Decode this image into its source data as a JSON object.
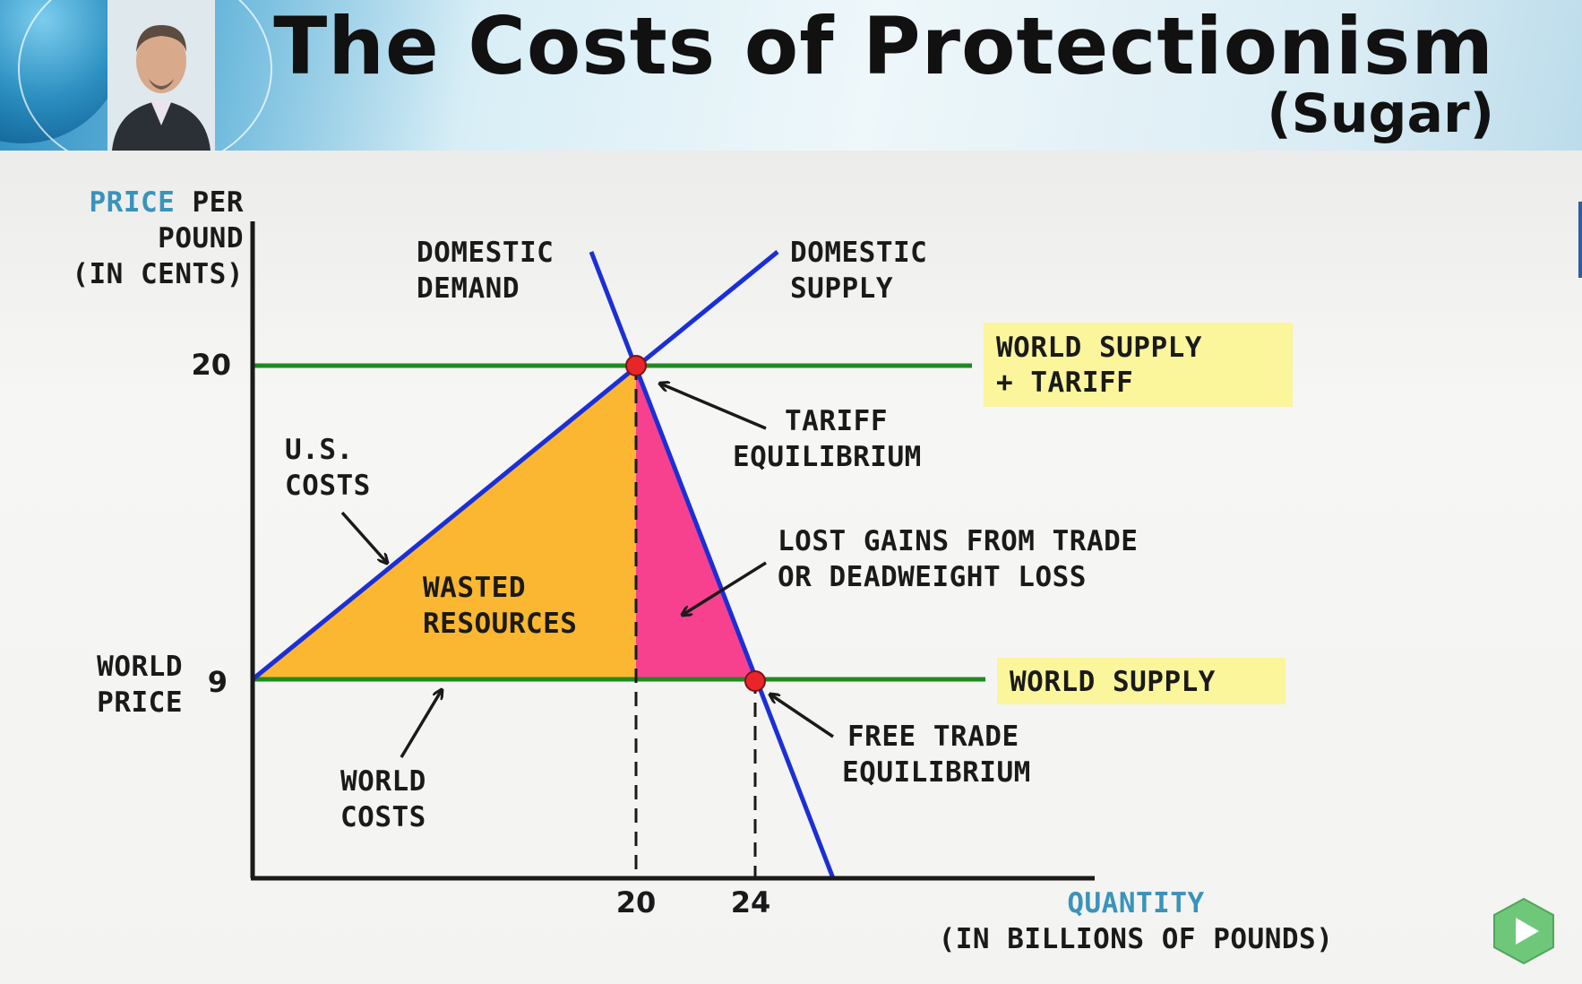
{
  "header": {
    "title": "The Costs of Protectionism",
    "subtitle": "(Sugar)"
  },
  "axes": {
    "y_label_line1_colored": "PRICE",
    "y_label_line1_rest": "PER",
    "y_label_line2": "POUND",
    "y_label_line3": "(IN CENTS)",
    "x_label_line1": "QUANTITY",
    "x_label_line2": "(IN BILLIONS OF POUNDS)",
    "y_ticks": [
      "20",
      "9"
    ],
    "x_ticks": [
      "20",
      "24"
    ],
    "world_price_line1": "WORLD",
    "world_price_line2": "PRICE"
  },
  "curves": {
    "demand_line1": "DOMESTIC",
    "demand_line2": "DEMAND",
    "supply_line1": "DOMESTIC",
    "supply_line2": "SUPPLY"
  },
  "boxes": {
    "tariff_line1": "WORLD SUPPLY",
    "tariff_line2": "+ TARIFF",
    "world_supply": "WORLD SUPPLY"
  },
  "annotations": {
    "tariff_eq_line1": "TARIFF",
    "tariff_eq_line2": "EQUILIBRIUM",
    "free_trade_line1": "FREE TRADE",
    "free_trade_line2": "EQUILIBRIUM",
    "us_costs_line1": "U.S.",
    "us_costs_line2": "COSTS",
    "world_costs_line1": "WORLD",
    "world_costs_line2": "COSTS",
    "wasted_line1": "WASTED",
    "wasted_line2": "RESOURCES",
    "deadweight_line1": "LOST GAINS FROM TRADE",
    "deadweight_line2": "OR DEADWEIGHT LOSS"
  },
  "colors": {
    "axis": "#1a1a1a",
    "curve": "#1b2fd6",
    "price_line": "#1f8a1f",
    "wasted_fill": "#fbb731",
    "deadweight_fill": "#f7418f",
    "equilibrium_dot": "#e8262a",
    "label_box": "#fbf59c",
    "axis_label_accent": "#3b93b9"
  },
  "chart_data": {
    "type": "supply-demand",
    "y_axis": "PRICE PER POUND (IN CENTS)",
    "x_axis": "QUANTITY (IN BILLIONS OF POUNDS)",
    "world_price": 9,
    "tariff_price": 20,
    "tariff_equilibrium": {
      "quantity": 20,
      "price": 20
    },
    "free_trade_equilibrium": {
      "quantity": 24,
      "price": 9
    }
  }
}
